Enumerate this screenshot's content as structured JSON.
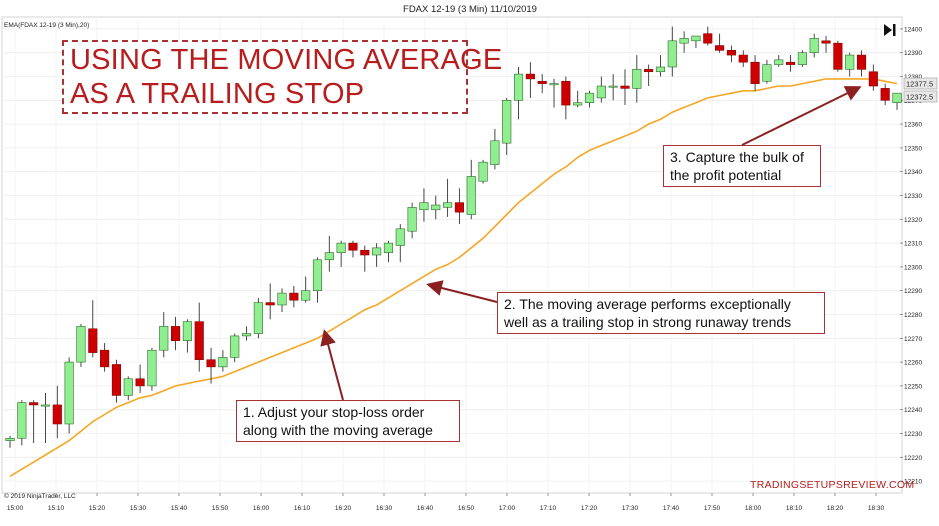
{
  "header": {
    "title": "FDAX 12-19 (3 Min)  11/10/2019",
    "indicator_label": "EMA(FDAX 12-19 (3 Min),20)",
    "copyright": "© 2019 NinjaTrader, LLC",
    "watermark": "TRADINGSETUPSREVIEW.COM",
    "price_tag_1": "12377.5",
    "price_tag_2": "12372.5"
  },
  "headline": {
    "line1": "USING THE MOVING AVERAGE",
    "line2": "AS A TRAILING STOP"
  },
  "annotations": [
    {
      "lines": [
        "1. Adjust your stop-loss order",
        "along with the moving average"
      ]
    },
    {
      "lines": [
        "2. The moving average performs exceptionally",
        "well as a trailing stop in strong runaway trends"
      ]
    },
    {
      "lines": [
        "3. Capture the bulk of",
        "the profit potential"
      ]
    }
  ],
  "colors": {
    "up": "#90ee90",
    "down": "#cc0000",
    "wick": "#333333",
    "ema": "#f5a623",
    "annotation": "#a83232"
  },
  "chart_data": {
    "type": "candlestick",
    "title": "FDAX 12-19 (3 Min)  11/10/2019",
    "ylim": [
      12205,
      12405
    ],
    "y_ticks": [
      12210,
      12220,
      12230,
      12240,
      12250,
      12260,
      12270,
      12280,
      12290,
      12300,
      12310,
      12320,
      12330,
      12340,
      12350,
      12360,
      12370,
      12380,
      12390,
      12400
    ],
    "x_ticks": [
      "15:00",
      "15:10",
      "15:20",
      "15:30",
      "15:40",
      "15:50",
      "16:00",
      "16:10",
      "16:20",
      "16:30",
      "16:40",
      "16:50",
      "17:00",
      "17:10",
      "17:20",
      "17:30",
      "17:40",
      "17:50",
      "18:00",
      "18:10",
      "18:20",
      "18:30"
    ],
    "grid": true,
    "candles": [
      {
        "o": 12227,
        "h": 12229,
        "l": 12224,
        "c": 12228
      },
      {
        "o": 12228,
        "h": 12244,
        "l": 12225,
        "c": 12243
      },
      {
        "o": 12243,
        "h": 12244,
        "l": 12226,
        "c": 12242
      },
      {
        "o": 12242,
        "h": 12247,
        "l": 12226,
        "c": 12242
      },
      {
        "o": 12242,
        "h": 12250,
        "l": 12228,
        "c": 12234
      },
      {
        "o": 12234,
        "h": 12262,
        "l": 12230,
        "c": 12260
      },
      {
        "o": 12260,
        "h": 12276,
        "l": 12258,
        "c": 12275
      },
      {
        "o": 12274,
        "h": 12286,
        "l": 12262,
        "c": 12264
      },
      {
        "o": 12265,
        "h": 12268,
        "l": 12256,
        "c": 12258
      },
      {
        "o": 12259,
        "h": 12261,
        "l": 12243,
        "c": 12246
      },
      {
        "o": 12246,
        "h": 12254,
        "l": 12244,
        "c": 12253
      },
      {
        "o": 12253,
        "h": 12259,
        "l": 12247,
        "c": 12250
      },
      {
        "o": 12250,
        "h": 12266,
        "l": 12248,
        "c": 12265
      },
      {
        "o": 12265,
        "h": 12281,
        "l": 12262,
        "c": 12275
      },
      {
        "o": 12275,
        "h": 12279,
        "l": 12265,
        "c": 12269
      },
      {
        "o": 12269,
        "h": 12278,
        "l": 12264,
        "c": 12277
      },
      {
        "o": 12277,
        "h": 12285,
        "l": 12256,
        "c": 12261
      },
      {
        "o": 12261,
        "h": 12266,
        "l": 12251,
        "c": 12258
      },
      {
        "o": 12258,
        "h": 12265,
        "l": 12256,
        "c": 12262
      },
      {
        "o": 12262,
        "h": 12272,
        "l": 12260,
        "c": 12271
      },
      {
        "o": 12271,
        "h": 12275,
        "l": 12269,
        "c": 12272
      },
      {
        "o": 12272,
        "h": 12287,
        "l": 12270,
        "c": 12285
      },
      {
        "o": 12285,
        "h": 12293,
        "l": 12278,
        "c": 12284
      },
      {
        "o": 12284,
        "h": 12291,
        "l": 12281,
        "c": 12289
      },
      {
        "o": 12289,
        "h": 12292,
        "l": 12283,
        "c": 12286
      },
      {
        "o": 12286,
        "h": 12296,
        "l": 12285,
        "c": 12290
      },
      {
        "o": 12290,
        "h": 12304,
        "l": 12285,
        "c": 12303
      },
      {
        "o": 12303,
        "h": 12313,
        "l": 12298,
        "c": 12306
      },
      {
        "o": 12306,
        "h": 12311,
        "l": 12300,
        "c": 12310
      },
      {
        "o": 12310,
        "h": 12311,
        "l": 12304,
        "c": 12307
      },
      {
        "o": 12307,
        "h": 12309,
        "l": 12298,
        "c": 12305
      },
      {
        "o": 12305,
        "h": 12310,
        "l": 12300,
        "c": 12308
      },
      {
        "o": 12306,
        "h": 12311,
        "l": 12302,
        "c": 12310
      },
      {
        "o": 12309,
        "h": 12318,
        "l": 12302,
        "c": 12316
      },
      {
        "o": 12315,
        "h": 12327,
        "l": 12312,
        "c": 12325
      },
      {
        "o": 12324,
        "h": 12333,
        "l": 12319,
        "c": 12327
      },
      {
        "o": 12324,
        "h": 12330,
        "l": 12320,
        "c": 12326
      },
      {
        "o": 12325,
        "h": 12337,
        "l": 12321,
        "c": 12327
      },
      {
        "o": 12327,
        "h": 12333,
        "l": 12318,
        "c": 12323
      },
      {
        "o": 12322,
        "h": 12345,
        "l": 12320,
        "c": 12338
      },
      {
        "o": 12336,
        "h": 12345,
        "l": 12335,
        "c": 12344
      },
      {
        "o": 12343,
        "h": 12358,
        "l": 12341,
        "c": 12353
      },
      {
        "o": 12352,
        "h": 12371,
        "l": 12347,
        "c": 12370
      },
      {
        "o": 12370,
        "h": 12384,
        "l": 12362,
        "c": 12381
      },
      {
        "o": 12381,
        "h": 12386,
        "l": 12371,
        "c": 12379
      },
      {
        "o": 12378,
        "h": 12381,
        "l": 12373,
        "c": 12377
      },
      {
        "o": 12377,
        "h": 12379,
        "l": 12367,
        "c": 12377
      },
      {
        "o": 12378,
        "h": 12380,
        "l": 12362,
        "c": 12368
      },
      {
        "o": 12368,
        "h": 12374,
        "l": 12367,
        "c": 12369
      },
      {
        "o": 12369,
        "h": 12374,
        "l": 12367,
        "c": 12373
      },
      {
        "o": 12371,
        "h": 12380,
        "l": 12369,
        "c": 12376
      },
      {
        "o": 12376,
        "h": 12381,
        "l": 12370,
        "c": 12376
      },
      {
        "o": 12376,
        "h": 12383,
        "l": 12368,
        "c": 12375
      },
      {
        "o": 12375,
        "h": 12389,
        "l": 12369,
        "c": 12383
      },
      {
        "o": 12383,
        "h": 12385,
        "l": 12376,
        "c": 12382
      },
      {
        "o": 12382,
        "h": 12389,
        "l": 12380,
        "c": 12384
      },
      {
        "o": 12384,
        "h": 12401,
        "l": 12380,
        "c": 12395
      },
      {
        "o": 12394,
        "h": 12399,
        "l": 12390,
        "c": 12396
      },
      {
        "o": 12395,
        "h": 12397,
        "l": 12392,
        "c": 12397
      },
      {
        "o": 12398,
        "h": 12401,
        "l": 12393,
        "c": 12394
      },
      {
        "o": 12393,
        "h": 12398,
        "l": 12390,
        "c": 12391
      },
      {
        "o": 12391,
        "h": 12393,
        "l": 12386,
        "c": 12389
      },
      {
        "o": 12389,
        "h": 12391,
        "l": 12384,
        "c": 12386
      },
      {
        "o": 12386,
        "h": 12389,
        "l": 12374,
        "c": 12377
      },
      {
        "o": 12378,
        "h": 12387,
        "l": 12377,
        "c": 12385
      },
      {
        "o": 12385,
        "h": 12389,
        "l": 12384,
        "c": 12387
      },
      {
        "o": 12386,
        "h": 12389,
        "l": 12382,
        "c": 12385
      },
      {
        "o": 12385,
        "h": 12391,
        "l": 12384,
        "c": 12390
      },
      {
        "o": 12390,
        "h": 12398,
        "l": 12388,
        "c": 12396
      },
      {
        "o": 12395,
        "h": 12397,
        "l": 12390,
        "c": 12394
      },
      {
        "o": 12394,
        "h": 12395,
        "l": 12382,
        "c": 12383
      },
      {
        "o": 12383,
        "h": 12390,
        "l": 12380,
        "c": 12389
      },
      {
        "o": 12389,
        "h": 12391,
        "l": 12380,
        "c": 12383
      },
      {
        "o": 12382,
        "h": 12385,
        "l": 12374,
        "c": 12376
      },
      {
        "o": 12375,
        "h": 12377,
        "l": 12368,
        "c": 12370
      },
      {
        "o": 12369,
        "h": 12373,
        "l": 12366,
        "c": 12373
      }
    ],
    "ema": [
      12212,
      12215,
      12218,
      12221,
      12224,
      12227,
      12231,
      12235,
      12238,
      12241,
      12243,
      12245,
      12246,
      12248,
      12250,
      12251,
      12252,
      12253,
      12254,
      12256,
      12258,
      12260,
      12262,
      12264,
      12266,
      12268,
      12270,
      12273,
      12276,
      12279,
      12282,
      12284,
      12287,
      12290,
      12293,
      12296,
      12299,
      12301,
      12304,
      12308,
      12312,
      12317,
      12322,
      12327,
      12331,
      12335,
      12339,
      12342,
      12346,
      12349,
      12351,
      12353,
      12355,
      12357,
      12360,
      12362,
      12365,
      12367,
      12369,
      12371,
      12372,
      12373,
      12374,
      12374,
      12375,
      12376,
      12376,
      12377,
      12378,
      12379,
      12379,
      12379,
      12379,
      12379,
      12378,
      12377
    ]
  }
}
